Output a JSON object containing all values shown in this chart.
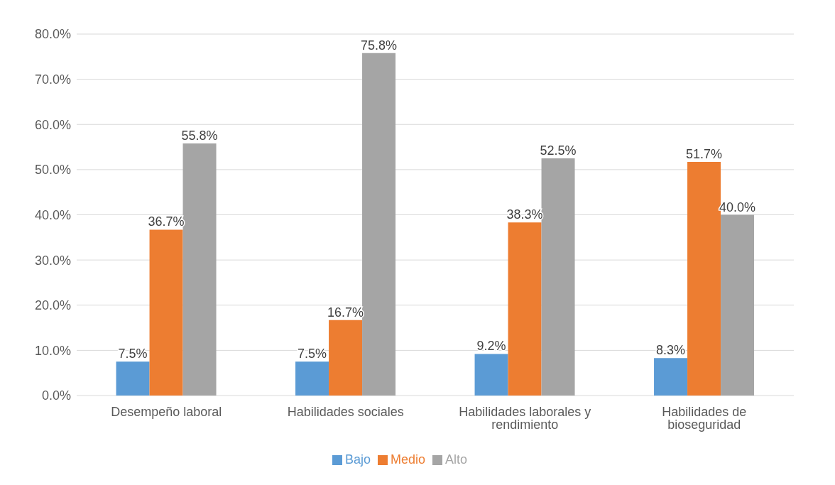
{
  "chart_data": {
    "type": "bar",
    "categories": [
      "Desempeño laboral",
      "Habilidades sociales",
      "Habilidades laborales y rendimiento",
      "Habilidades de bioseguridad"
    ],
    "series": [
      {
        "name": "Bajo",
        "color": "#5b9bd5",
        "values": [
          7.5,
          7.5,
          9.2,
          8.3
        ],
        "value_labels": [
          "7.5%",
          "7.5%",
          "9.2%",
          "8.3%"
        ]
      },
      {
        "name": "Medio",
        "color": "#ed7d31",
        "values": [
          36.7,
          16.7,
          38.3,
          51.7
        ],
        "value_labels": [
          "36.7%",
          "16.7%",
          "38.3%",
          "51.7%"
        ]
      },
      {
        "name": "Alto",
        "color": "#a5a5a5",
        "values": [
          55.8,
          75.8,
          52.5,
          40.0
        ],
        "value_labels": [
          "55.8%",
          "75.8%",
          "52.5%",
          "40.0%"
        ]
      }
    ],
    "ylim": [
      0,
      80
    ],
    "yticks": [
      {
        "value": 0,
        "label": "0.0%"
      },
      {
        "value": 10,
        "label": "10.0%"
      },
      {
        "value": 20,
        "label": "20.0%"
      },
      {
        "value": 30,
        "label": "30.0%"
      },
      {
        "value": 40,
        "label": "40.0%"
      },
      {
        "value": 50,
        "label": "50.0%"
      },
      {
        "value": 60,
        "label": "60.0%"
      },
      {
        "value": 70,
        "label": "70.0%"
      },
      {
        "value": 80,
        "label": "80.0%"
      }
    ],
    "grid": "y",
    "legend": "bottom"
  }
}
